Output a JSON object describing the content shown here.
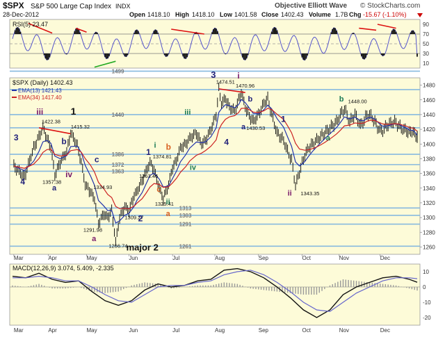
{
  "header": {
    "ticker": "$SPX",
    "name": "S&P 500 Large Cap Index",
    "exchange": "INDX",
    "date": "28-Dec-2012",
    "open_label": "Open",
    "open": "1418.10",
    "high_label": "High",
    "high": "1418.10",
    "low_label": "Low",
    "low": "1401.58",
    "close_label": "Close",
    "close": "1402.43",
    "volume_label": "Volume",
    "volume": "1.7B",
    "chg_label": "Chg",
    "chg": "-15.67 (-1.10%)",
    "source": "Objective Elliott Wave",
    "watermark": "© StockCharts.com"
  },
  "colors": {
    "panel_bg": "#fdfbd8",
    "price": "#000000",
    "ema13": "#2233aa",
    "ema34": "#cc2222",
    "rsi": "#5555cc",
    "hline": "#87b9df",
    "wave_black": "#111111",
    "wave_blue": "#22227a",
    "wave_green": "#1b7a55",
    "wave_purple": "#7a1a6a",
    "wave_orange": "#d86020",
    "resistance_red": "#dd1111",
    "support_green": "#22aa22",
    "level_label": "#7a7a7a"
  },
  "chart_data": [
    {
      "type": "line",
      "title": "RSI(5) 23.47",
      "ylim": [
        0,
        100
      ],
      "yticks": [
        "10",
        "30",
        "50",
        "70",
        "90"
      ],
      "reference_lines": [
        30,
        50,
        70
      ],
      "x": [
        "Mar",
        "Apr",
        "May",
        "Jun",
        "Jul",
        "Aug",
        "Sep",
        "Oct",
        "Nov",
        "Dec",
        "Dec 28"
      ],
      "values": [
        48,
        58,
        40,
        25,
        70,
        55,
        62,
        58,
        30,
        80,
        23.47
      ]
    },
    {
      "type": "line",
      "title": "$SPX (Daily) 1402.43",
      "ylim": [
        1250,
        1490
      ],
      "yticks": [
        "1260",
        "1280",
        "1300",
        "1320",
        "1340",
        "1360",
        "1380",
        "1400",
        "1420",
        "1440",
        "1460",
        "1480"
      ],
      "xticks": [
        "Mar",
        "Apr",
        "May",
        "Jun",
        "Jul",
        "Aug",
        "Sep",
        "Oct",
        "Nov",
        "Dec"
      ],
      "series": [
        {
          "name": "$SPX (Daily) 1402.43",
          "x": [
            1,
            9,
            16,
            20,
            23,
            26,
            29,
            32,
            36,
            41,
            44,
            49,
            52,
            55,
            59,
            62,
            65,
            69,
            72,
            75,
            78,
            81,
            85,
            88,
            92,
            94,
            98,
            101,
            104,
            107,
            111,
            114,
            118,
            121,
            124,
            127,
            131,
            134,
            139,
            143,
            146,
            150,
            154,
            156,
            158,
            161,
            164,
            168,
            171,
            173,
            176,
            179,
            182,
            186,
            190,
            193,
            196,
            200,
            205,
            208,
            211,
            214,
            217,
            221,
            224,
            227,
            230,
            233,
            236,
            239,
            242,
            245,
            248,
            251,
            255,
            259,
            263,
            266,
            268,
            271,
            274,
            277,
            280,
            283,
            286,
            289,
            292,
            295,
            298,
            300,
            303,
            306
          ],
          "values": [
            1370,
            1355,
            1395,
            1410,
            1422.38,
            1408,
            1395,
            1357.38,
            1375,
            1390,
            1415.32,
            1398,
            1375,
            1345,
            1334.93,
            1325,
            1291.98,
            1305,
            1300,
            1310,
            1266.74,
            1300,
            1315,
            1309.27,
            1330,
            1335,
            1350,
            1363.46,
            1374.81,
            1365,
            1340,
            1325.41,
            1345,
            1368,
            1378,
            1395,
            1400,
            1408,
            1415,
            1400,
            1405,
            1420,
            1440,
            1474.51,
            1455,
            1462,
            1450,
            1445,
            1460,
            1470.96,
            1450,
            1438,
            1430.53,
            1440,
            1455,
            1462,
            1440,
            1415,
            1405,
            1390,
            1378,
            1343.35,
            1362,
            1385,
            1395,
            1400,
            1405,
            1410,
            1415,
            1420,
            1425,
            1430,
            1440,
            1448.0,
            1430,
            1440,
            1425,
            1432,
            1440,
            1438,
            1430,
            1420,
            1418,
            1425,
            1428,
            1430,
            1425,
            1420,
            1418,
            1415,
            1418.1,
            1402.43
          ]
        },
        {
          "name": "EMA(13) 1421.43",
          "values": []
        },
        {
          "name": "EMA(34) 1417.40",
          "values": []
        }
      ],
      "horizontal_levels": [
        1499,
        1474,
        1440,
        1422,
        1386,
        1372,
        1363,
        1313,
        1303,
        1291,
        1261
      ],
      "level_labels": [
        "1499",
        "1440",
        "1386",
        "1372",
        "1363",
        "1313",
        "1303",
        "1291",
        "1261"
      ],
      "price_labels": [
        "1422.38",
        "1415.32",
        "1357.38",
        "1334.93",
        "1291.98",
        "1266.74",
        "1363.46",
        "1374.81",
        "1325.41",
        "1309.27",
        "1474.51",
        "1470.96",
        "1430.53",
        "1343.35",
        "1448.00"
      ],
      "wave_labels": [
        {
          "text": "3",
          "color": "blue"
        },
        {
          "text": "4",
          "color": "blue"
        },
        {
          "text": "iii",
          "color": "purple"
        },
        {
          "text": "1",
          "color": "black"
        },
        {
          "text": "b",
          "color": "blue"
        },
        {
          "text": "iv",
          "color": "purple"
        },
        {
          "text": "a",
          "color": "blue"
        },
        {
          "text": "c",
          "color": "blue"
        },
        {
          "text": "a",
          "color": "purple"
        },
        {
          "text": "major 2",
          "color": "black"
        },
        {
          "text": "1",
          "color": "blue"
        },
        {
          "text": "i",
          "color": "green"
        },
        {
          "text": "b",
          "color": "orange"
        },
        {
          "text": "2",
          "color": "blue"
        },
        {
          "text": "ii",
          "color": "green"
        },
        {
          "text": "a",
          "color": "orange"
        },
        {
          "text": "c",
          "color": "orange"
        },
        {
          "text": "iii",
          "color": "green"
        },
        {
          "text": "iv",
          "color": "green"
        },
        {
          "text": "3",
          "color": "blue"
        },
        {
          "text": "i",
          "color": "purple"
        },
        {
          "text": "b",
          "color": "blue"
        },
        {
          "text": "4",
          "color": "blue"
        },
        {
          "text": "a",
          "color": "blue"
        },
        {
          "text": "1",
          "color": "blue"
        },
        {
          "text": "ii",
          "color": "purple"
        },
        {
          "text": "b",
          "color": "green"
        },
        {
          "text": "a",
          "color": "green"
        }
      ]
    },
    {
      "type": "line",
      "title": "MACD(12,26,9) 3.074, 5.409, -2.335",
      "ylim": [
        -25,
        15
      ],
      "yticks": [
        "10",
        "0",
        "-10",
        "-20"
      ],
      "series": [
        {
          "name": "MACD",
          "x": [
            0,
            10,
            20,
            30,
            40,
            50,
            60,
            70,
            80,
            90,
            100,
            110,
            120,
            130,
            140,
            150,
            160,
            170,
            180,
            190,
            200,
            210,
            220,
            230,
            240,
            250,
            260,
            270,
            280,
            290,
            300,
            306
          ],
          "values": [
            7,
            6,
            9,
            5,
            3,
            4,
            -3,
            -9,
            -12,
            -9,
            -2,
            2,
            0,
            1,
            4,
            5,
            11,
            12,
            10,
            6,
            0,
            -7,
            -15,
            -20,
            -15,
            -5,
            0,
            3,
            6,
            7,
            5,
            3.074
          ]
        },
        {
          "name": "Signal",
          "x": [
            0,
            10,
            20,
            30,
            40,
            50,
            60,
            70,
            80,
            90,
            100,
            110,
            120,
            130,
            140,
            150,
            160,
            170,
            180,
            190,
            200,
            210,
            220,
            230,
            240,
            250,
            260,
            270,
            280,
            290,
            300,
            306
          ],
          "values": [
            6,
            6,
            7,
            6,
            4,
            4,
            0,
            -5,
            -9,
            -10,
            -5,
            0,
            1,
            1,
            3,
            4,
            8,
            10,
            11,
            8,
            3,
            -3,
            -10,
            -15,
            -16,
            -10,
            -4,
            0,
            4,
            6,
            6,
            5.409
          ]
        }
      ],
      "xticks": [
        "Mar",
        "Apr",
        "May",
        "Jun",
        "Jul",
        "Aug",
        "Sep",
        "Oct",
        "Nov",
        "Dec"
      ]
    }
  ]
}
